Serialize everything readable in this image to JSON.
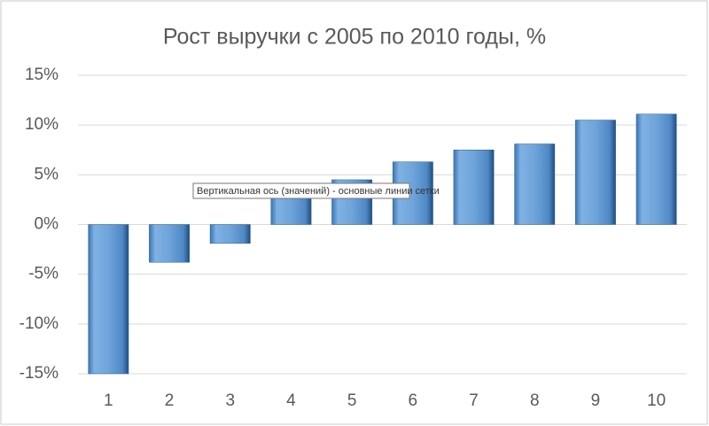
{
  "chart_data": {
    "type": "bar",
    "title": "Рост выручки с 2005 по 2010 годы, %",
    "categories": [
      "1",
      "2",
      "3",
      "4",
      "5",
      "6",
      "7",
      "8",
      "9",
      "10"
    ],
    "values": [
      -15,
      -3.8,
      -1.9,
      3.9,
      4.5,
      6.3,
      7.5,
      8.1,
      10.5,
      11.1
    ],
    "color": "#5b9bd5",
    "ylim": [
      -15,
      15
    ],
    "yticks": [
      {
        "value": -15,
        "label": "-15%"
      },
      {
        "value": -10,
        "label": "-10%"
      },
      {
        "value": -5,
        "label": "-5%"
      },
      {
        "value": 0,
        "label": "0%"
      },
      {
        "value": 5,
        "label": "5%"
      },
      {
        "value": 10,
        "label": "10%"
      },
      {
        "value": 15,
        "label": "15%"
      }
    ],
    "grid": true
  },
  "tooltip": "Вертикальная ось (значений)  - основные линии сетки"
}
